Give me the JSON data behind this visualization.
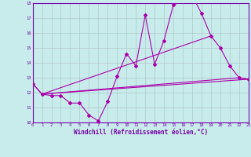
{
  "xlabel": "Windchill (Refroidissement éolien,°C)",
  "bg_color": "#c8ecec",
  "line_color": "#aa00aa",
  "grid_color": "#b0c8c8",
  "axis_color": "#7700aa",
  "text_color": "#7700aa",
  "xlim": [
    0,
    23
  ],
  "ylim": [
    10,
    18
  ],
  "yticks": [
    10,
    11,
    12,
    13,
    14,
    15,
    16,
    17,
    18
  ],
  "xticks": [
    0,
    1,
    2,
    3,
    4,
    5,
    6,
    7,
    8,
    9,
    10,
    11,
    12,
    13,
    14,
    15,
    16,
    17,
    18,
    19,
    20,
    21,
    22,
    23
  ],
  "line1_x": [
    0,
    1,
    2,
    3,
    4,
    5,
    6,
    7,
    8,
    9,
    10,
    11,
    12,
    13,
    14,
    15,
    16,
    17,
    18,
    19,
    20,
    21,
    22,
    23
  ],
  "line1_y": [
    12.6,
    11.9,
    11.8,
    11.8,
    11.3,
    11.3,
    10.5,
    10.1,
    11.4,
    13.1,
    14.6,
    13.8,
    17.2,
    13.9,
    15.5,
    17.9,
    18.1,
    18.5,
    17.3,
    15.8,
    15.0,
    13.8,
    13.0,
    12.9
  ],
  "line2_x": [
    0,
    1,
    22,
    23
  ],
  "line2_y": [
    12.6,
    11.9,
    13.0,
    12.9
  ],
  "line3_x": [
    1,
    19
  ],
  "line3_y": [
    11.9,
    15.8
  ],
  "line4_x": [
    1,
    23
  ],
  "line4_y": [
    11.9,
    12.9
  ]
}
